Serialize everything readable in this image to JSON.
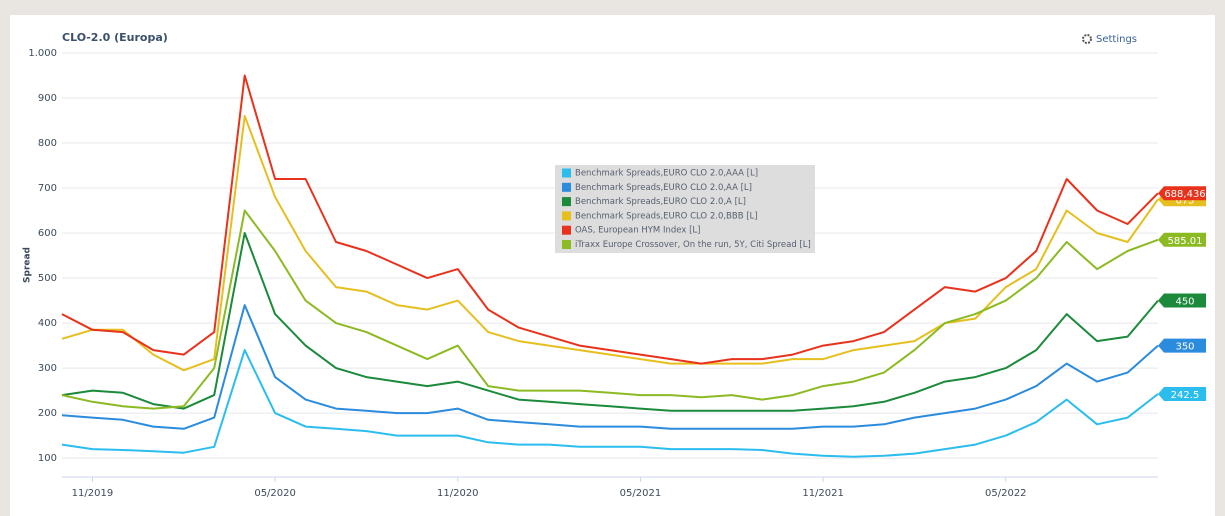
{
  "toolbar": {
    "settings": "Settings"
  },
  "chart_data": {
    "type": "line",
    "title": "CLO-2.0 (Europa)",
    "y_label": "Spread",
    "x": [
      "10/2019",
      "11/2019",
      "12/2019",
      "01/2020",
      "02/2020",
      "03/2020",
      "04/2020",
      "05/2020",
      "06/2020",
      "07/2020",
      "08/2020",
      "09/2020",
      "10/2020",
      "11/2020",
      "12/2020",
      "01/2021",
      "02/2021",
      "03/2021",
      "04/2021",
      "05/2021",
      "06/2021",
      "07/2021",
      "08/2021",
      "09/2021",
      "10/2021",
      "11/2021",
      "12/2021",
      "01/2022",
      "02/2022",
      "03/2022",
      "04/2022",
      "05/2022",
      "06/2022",
      "07/2022",
      "08/2022",
      "09/2022",
      "10/2022"
    ],
    "xlim": [
      "10/2019",
      "10/2022"
    ],
    "xticks": [
      "11/2019",
      "05/2020",
      "11/2020",
      "05/2021",
      "11/2021",
      "05/2022"
    ],
    "ylim": [
      58,
      1000
    ],
    "yticks": [
      100,
      200,
      300,
      400,
      500,
      600,
      700,
      800,
      900,
      {
        "value": 1000,
        "label": "1.000"
      }
    ],
    "grid": true,
    "series": [
      {
        "name": "Benchmark Spreads,EURO CLO 2.0,AAA [L]",
        "color": "#2bbdee",
        "values": [
          130,
          120,
          118,
          115,
          112,
          125,
          340,
          200,
          170,
          165,
          160,
          150,
          150,
          150,
          135,
          130,
          130,
          125,
          125,
          125,
          120,
          120,
          120,
          118,
          110,
          105,
          103,
          105,
          110,
          120,
          130,
          150,
          180,
          230,
          175,
          190,
          242.5
        ]
      },
      {
        "name": "Benchmark Spreads,EURO CLO 2.0,AA [L]",
        "color": "#2b8bdc",
        "values": [
          195,
          190,
          185,
          170,
          165,
          190,
          440,
          280,
          230,
          210,
          205,
          200,
          200,
          210,
          185,
          180,
          175,
          170,
          170,
          170,
          165,
          165,
          165,
          165,
          165,
          170,
          170,
          175,
          190,
          200,
          210,
          230,
          260,
          310,
          270,
          290,
          350
        ]
      },
      {
        "name": "Benchmark Spreads,EURO CLO 2.0,A [L]",
        "color": "#1b8a3b",
        "values": [
          240,
          250,
          245,
          220,
          210,
          240,
          600,
          420,
          350,
          300,
          280,
          270,
          260,
          270,
          250,
          230,
          225,
          220,
          215,
          210,
          205,
          205,
          205,
          205,
          205,
          210,
          215,
          225,
          245,
          270,
          280,
          300,
          340,
          420,
          360,
          370,
          450
        ]
      },
      {
        "name": "Benchmark Spreads,EURO CLO 2.0,BBB [L]",
        "color": "#e6bf1f",
        "values": [
          365,
          385,
          385,
          330,
          295,
          320,
          860,
          680,
          560,
          480,
          470,
          440,
          430,
          450,
          380,
          360,
          350,
          340,
          330,
          320,
          310,
          310,
          310,
          310,
          320,
          320,
          340,
          350,
          360,
          400,
          410,
          480,
          520,
          650,
          600,
          580,
          675
        ]
      },
      {
        "name": "OAS, European HYM Index [L]",
        "color": "#e8321c",
        "values": [
          420,
          385,
          380,
          340,
          330,
          380,
          950,
          720,
          720,
          580,
          560,
          530,
          500,
          520,
          430,
          390,
          370,
          350,
          340,
          330,
          320,
          310,
          320,
          320,
          330,
          350,
          360,
          380,
          430,
          480,
          470,
          500,
          560,
          720,
          650,
          620,
          688.436
        ],
        "value_labels": [
          null,
          null,
          null,
          null,
          null,
          null,
          null,
          null,
          null,
          null,
          null,
          null,
          null,
          null,
          null,
          null,
          null,
          null,
          null,
          null,
          null,
          null,
          null,
          null,
          null,
          null,
          null,
          null,
          null,
          null,
          null,
          null,
          null,
          null,
          null,
          null,
          "688,436"
        ]
      },
      {
        "name": "iTraxx Europe Crossover, On the run, 5Y, Citi Spread [L]",
        "color": "#8cba22",
        "values": [
          240,
          225,
          215,
          210,
          215,
          300,
          650,
          560,
          450,
          400,
          380,
          350,
          320,
          350,
          260,
          250,
          250,
          250,
          245,
          240,
          240,
          235,
          240,
          230,
          240,
          260,
          270,
          290,
          340,
          400,
          420,
          450,
          500,
          580,
          520,
          560,
          585.01
        ]
      }
    ]
  }
}
